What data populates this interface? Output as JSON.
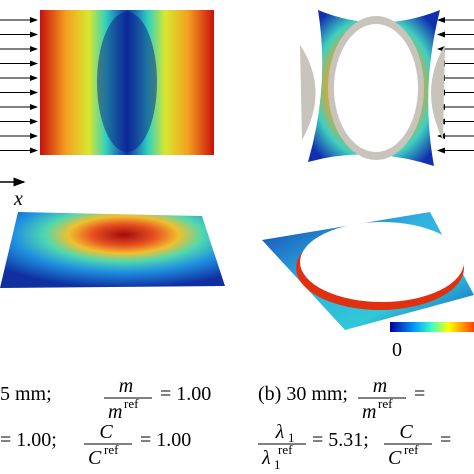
{
  "axis_label": "x",
  "colorbar": {
    "label": "0"
  },
  "captions": {
    "a1": {
      "prefix": "5 mm;",
      "num": "m",
      "den": "m",
      "den_sup": "ref",
      "suffix": "= 1.00"
    },
    "a2": {
      "prefix": "= 1.00;",
      "num": "C",
      "den": "C",
      "den_sup": "ref",
      "suffix": "= 1.00"
    },
    "b1": {
      "prefix": "(b) 30 mm;",
      "num": "m",
      "den": "m",
      "den_sup": "ref",
      "suffix": "="
    },
    "b2": {
      "num": "λ",
      "num_sub": "1",
      "den": "λ",
      "den_sub": "1",
      "den_sup": "ref",
      "suffix": "= 5.31;",
      "num2": "C",
      "den2": "C",
      "den2_sup": "ref",
      "suffix2": "="
    }
  }
}
